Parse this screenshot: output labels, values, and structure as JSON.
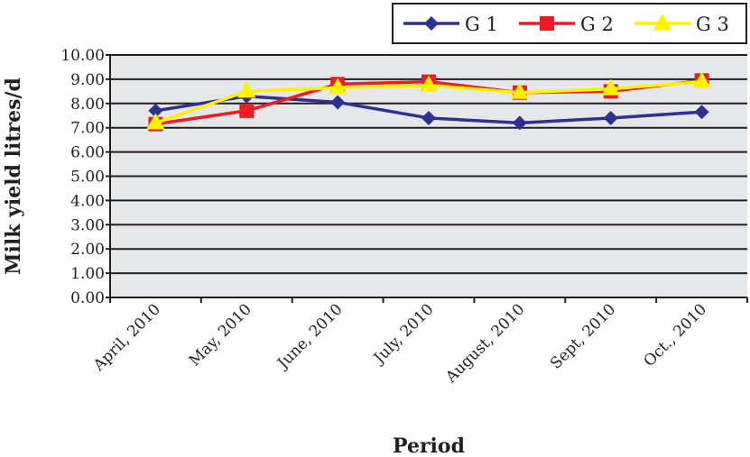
{
  "chart_data": {
    "type": "line",
    "title": "",
    "xlabel": "Period",
    "ylabel": "Milk yield litres/d",
    "ylim": [
      0,
      10
    ],
    "ytick_step": 1,
    "ytick_labels": [
      "0.00",
      "1.00",
      "2.00",
      "3.00",
      "4.00",
      "5.00",
      "6.00",
      "7.00",
      "8.00",
      "9.00",
      "10.00"
    ],
    "categories": [
      "April, 2010",
      "May, 2010",
      "June, 2010",
      "July, 2010",
      "August, 2010",
      "Sept, 2010",
      "Oct., 2010"
    ],
    "grid": true,
    "legend_position": "top-right",
    "series": [
      {
        "name": "G 1",
        "color": "#2e3192",
        "marker": "diamond",
        "values": [
          7.7,
          8.3,
          8.05,
          7.4,
          7.2,
          7.4,
          7.65
        ]
      },
      {
        "name": "G 2",
        "color": "#ed1c24",
        "marker": "square",
        "values": [
          7.15,
          7.7,
          8.8,
          8.9,
          8.45,
          8.5,
          8.95
        ]
      },
      {
        "name": "G 3",
        "color": "#fff200",
        "marker": "triangle",
        "values": [
          7.2,
          8.5,
          8.65,
          8.75,
          8.45,
          8.6,
          8.9
        ]
      }
    ]
  }
}
